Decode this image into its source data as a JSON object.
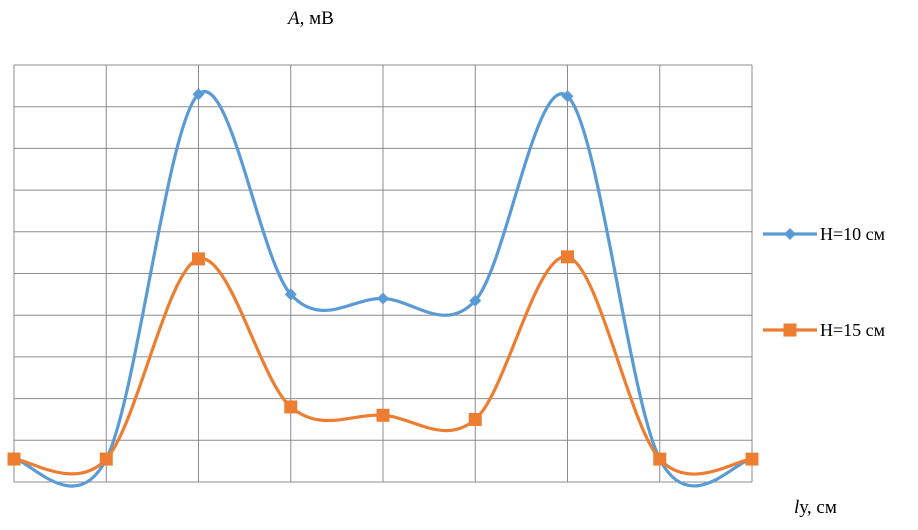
{
  "chart_data": {
    "type": "line",
    "title": "",
    "ylabel": {
      "var": "A",
      "unit": ", мВ"
    },
    "xlabel": {
      "var": "l",
      "unit": "у, см"
    },
    "x": [
      0,
      1,
      2,
      3,
      4,
      5,
      6,
      7,
      8
    ],
    "xlim": [
      0,
      8
    ],
    "ylim": [
      0,
      10
    ],
    "grid": true,
    "smooth": true,
    "legend_position": "right",
    "series": [
      {
        "name": "H=10 см",
        "color": "#5B9BD5",
        "marker": "diamond",
        "values": [
          0.55,
          0.55,
          9.3,
          4.5,
          4.4,
          4.35,
          9.25,
          0.55,
          0.55
        ]
      },
      {
        "name": "H=15 см",
        "color": "#ED7D31",
        "marker": "square",
        "values": [
          0.55,
          0.55,
          5.35,
          1.8,
          1.6,
          1.5,
          5.4,
          0.55,
          0.55
        ]
      }
    ]
  }
}
